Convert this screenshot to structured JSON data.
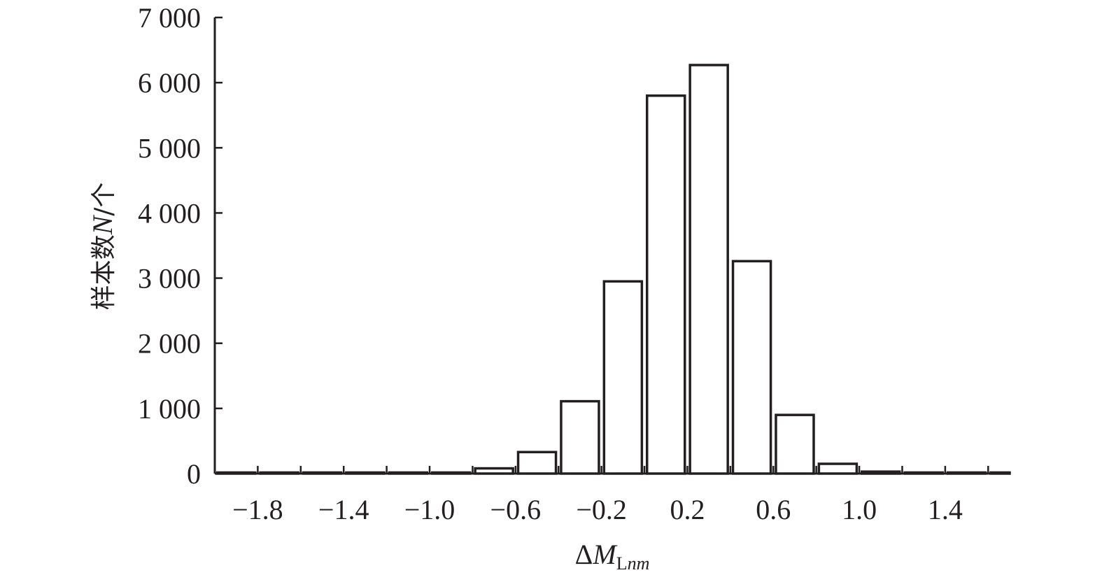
{
  "chart_data": {
    "type": "bar",
    "ylabel_parts": [
      "样本数",
      "N",
      "/个"
    ],
    "xlabel_parts": [
      "ΔM",
      "Lnm"
    ],
    "xlim": [
      -2.0,
      1.7
    ],
    "ylim": [
      0,
      7000
    ],
    "bin_width": 0.2,
    "x_ticks": [
      -1.8,
      -1.4,
      -1.0,
      -0.6,
      -0.2,
      0.2,
      0.6,
      1.0,
      1.4
    ],
    "x_tick_labels": [
      "−1.8",
      "−1.4",
      "−1.0",
      "−0.6",
      "−0.2",
      "0.2",
      "0.6",
      "1.0",
      "1.4"
    ],
    "x_minor_ticks": [
      -1.6,
      -1.2,
      -0.8,
      -0.4,
      0.0,
      0.4,
      0.8,
      1.2,
      1.6
    ],
    "y_ticks": [
      0,
      1000,
      2000,
      3000,
      4000,
      5000,
      6000,
      7000
    ],
    "y_tick_labels": [
      "0",
      "1 000",
      "2 000",
      "3 000",
      "4 000",
      "5 000",
      "6 000",
      "7 000"
    ],
    "bin_centers": [
      -1.9,
      -1.7,
      -1.5,
      -1.3,
      -1.1,
      -0.9,
      -0.7,
      -0.5,
      -0.3,
      -0.1,
      0.1,
      0.3,
      0.5,
      0.7,
      0.9,
      1.1,
      1.3,
      1.5,
      1.7
    ],
    "values": [
      5,
      5,
      5,
      5,
      5,
      5,
      80,
      330,
      1110,
      2950,
      5800,
      6270,
      3260,
      900,
      150,
      30,
      15,
      5,
      5
    ],
    "grid": false,
    "legend": "none"
  }
}
